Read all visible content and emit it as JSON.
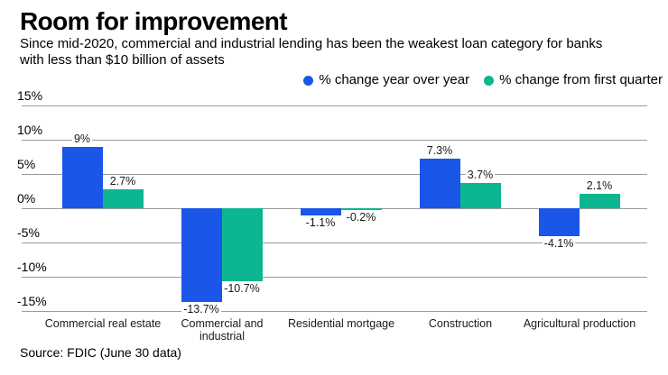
{
  "header": {
    "title": "Room for improvement",
    "subtitle_line1": "Since mid-2020, commercial and industrial lending has been the weakest loan category for banks",
    "subtitle_line2": "with less than $10 billion of assets"
  },
  "legend": [
    {
      "label": "% change year over year",
      "color": "#1a56e8"
    },
    {
      "label": "% change from first quarter",
      "color": "#0bb690"
    }
  ],
  "chart_data": {
    "type": "bar",
    "categories": [
      "Commercial real estate",
      "Commercial and industrial",
      "Residential mortgage",
      "Construction",
      "Agricultural production"
    ],
    "series": [
      {
        "name": "% change year over year",
        "color": "#1a56e8",
        "values": [
          9,
          -13.7,
          -1.1,
          7.3,
          -4.1
        ],
        "labels": [
          "9%",
          "-13.7%",
          "-1.1%",
          "7.3%",
          "-4.1%"
        ]
      },
      {
        "name": "% change from first quarter",
        "color": "#0bb690",
        "values": [
          2.7,
          -10.7,
          -0.2,
          3.7,
          2.1
        ],
        "labels": [
          "2.7%",
          "-10.7%",
          "-0.2%",
          "3.7%",
          "2.1%"
        ]
      }
    ],
    "y_ticks": [
      "15%",
      "10%",
      "5%",
      "0%",
      "-5%",
      "-10%",
      "-15%"
    ],
    "y_tick_values": [
      15,
      10,
      5,
      0,
      -5,
      -10,
      -15
    ],
    "ylim": [
      -15,
      15
    ],
    "grid": true,
    "gridline_color": "#9b9b9b",
    "legend_position": "top-right",
    "title": "Room for improvement",
    "xlabel": "",
    "ylabel": ""
  },
  "footer": {
    "source": "Source: FDIC (June 30 data)"
  }
}
